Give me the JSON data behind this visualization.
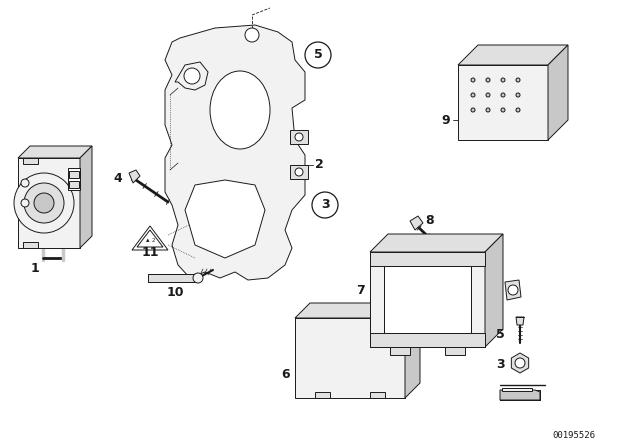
{
  "background_color": "#ffffff",
  "part_number": "00195526",
  "fig_width": 6.4,
  "fig_height": 4.48,
  "dpi": 100,
  "line_color": "#1a1a1a",
  "line_width": 0.7,
  "fill_light": "#f2f2f2",
  "fill_mid": "#e0e0e0",
  "fill_dark": "#c8c8c8"
}
